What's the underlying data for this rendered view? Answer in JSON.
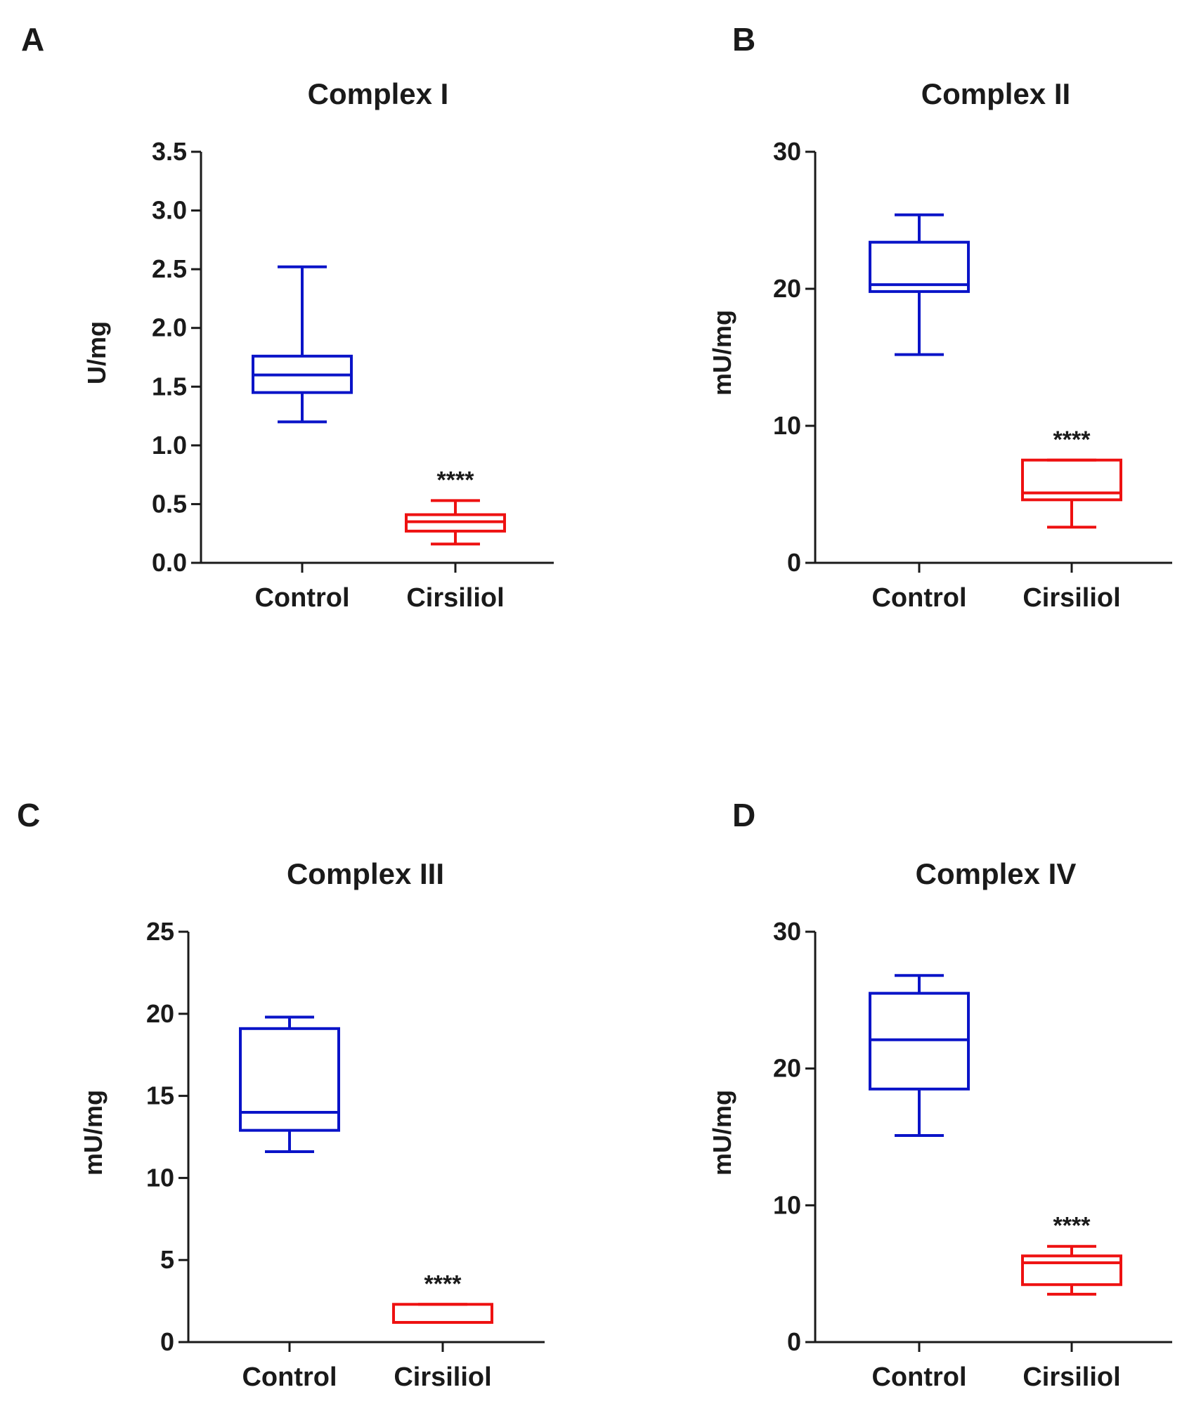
{
  "colors": {
    "control": "#0a14c8",
    "treatment": "#ee1111",
    "axis": "#1a1a1a"
  },
  "chart_data": [
    {
      "panel": "A",
      "type": "box",
      "title": "Complex I",
      "ylabel": "U/mg",
      "xlabel": "",
      "ylim": [
        0,
        3.5
      ],
      "yticks": [
        "0.0",
        "0.5",
        "1.0",
        "1.5",
        "2.0",
        "2.5",
        "3.0",
        "3.5"
      ],
      "ytick_values": [
        0,
        0.5,
        1.0,
        1.5,
        2.0,
        2.5,
        3.0,
        3.5
      ],
      "categories": [
        "Control",
        "Cirsiliol"
      ],
      "boxes": [
        {
          "category": "Control",
          "min": 1.2,
          "q1": 1.45,
          "median": 1.6,
          "q3": 1.76,
          "max": 2.52,
          "color": "#0a14c8",
          "annotation": ""
        },
        {
          "category": "Cirsiliol",
          "min": 0.16,
          "q1": 0.27,
          "median": 0.35,
          "q3": 0.41,
          "max": 0.53,
          "color": "#ee1111",
          "annotation": "****"
        }
      ]
    },
    {
      "panel": "B",
      "type": "box",
      "title": "Complex II",
      "ylabel": "mU/mg",
      "xlabel": "",
      "ylim": [
        0,
        30
      ],
      "yticks": [
        "0",
        "10",
        "20",
        "30"
      ],
      "ytick_values": [
        0,
        10,
        20,
        30
      ],
      "categories": [
        "Control",
        "Cirsiliol"
      ],
      "boxes": [
        {
          "category": "Control",
          "min": 15.2,
          "q1": 19.8,
          "median": 20.3,
          "q3": 23.4,
          "max": 25.4,
          "color": "#0a14c8",
          "annotation": ""
        },
        {
          "category": "Cirsiliol",
          "min": 2.6,
          "q1": 4.6,
          "median": 5.1,
          "q3": 7.5,
          "max": 7.5,
          "color": "#ee1111",
          "annotation": "****"
        }
      ]
    },
    {
      "panel": "C",
      "type": "box",
      "title": "Complex III",
      "ylabel": "mU/mg",
      "xlabel": "",
      "ylim": [
        0,
        25
      ],
      "yticks": [
        "0",
        "5",
        "10",
        "15",
        "20",
        "25"
      ],
      "ytick_values": [
        0,
        5,
        10,
        15,
        20,
        25
      ],
      "categories": [
        "Control",
        "Cirsiliol"
      ],
      "boxes": [
        {
          "category": "Control",
          "min": 11.6,
          "q1": 12.9,
          "median": 14.0,
          "q3": 19.1,
          "max": 19.8,
          "color": "#0a14c8",
          "annotation": ""
        },
        {
          "category": "Cirsiliol",
          "min": 1.2,
          "q1": 1.2,
          "median": 1.2,
          "q3": 2.3,
          "max": 2.3,
          "color": "#ee1111",
          "annotation": "****"
        }
      ]
    },
    {
      "panel": "D",
      "type": "box",
      "title": "Complex IV",
      "ylabel": "mU/mg",
      "xlabel": "",
      "ylim": [
        0,
        30
      ],
      "yticks": [
        "0",
        "10",
        "20",
        "30"
      ],
      "ytick_values": [
        0,
        10,
        20,
        30
      ],
      "categories": [
        "Control",
        "Cirsiliol"
      ],
      "boxes": [
        {
          "category": "Control",
          "min": 15.1,
          "q1": 18.5,
          "median": 22.1,
          "q3": 25.5,
          "max": 26.8,
          "color": "#0a14c8",
          "annotation": ""
        },
        {
          "category": "Cirsiliol",
          "min": 3.5,
          "q1": 4.2,
          "median": 5.8,
          "q3": 6.3,
          "max": 7.0,
          "color": "#ee1111",
          "annotation": "****"
        }
      ]
    }
  ]
}
